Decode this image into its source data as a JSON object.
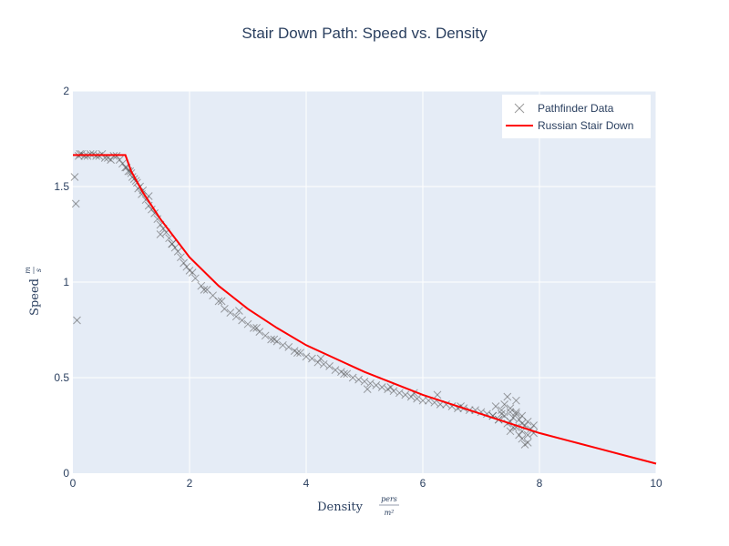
{
  "chart_data": {
    "type": "scatter",
    "title": "Stair Down Path: Speed vs. Density",
    "xlabel": "Density",
    "xlabel_unit_num": "pers",
    "xlabel_unit_den": "m²",
    "ylabel": "Speed",
    "ylabel_unit_num": "m",
    "ylabel_unit_den": "s",
    "xlim": [
      0,
      10
    ],
    "ylim": [
      0,
      2
    ],
    "x_ticks": [
      0,
      2,
      4,
      6,
      8,
      10
    ],
    "y_ticks": [
      0,
      0.5,
      1,
      1.5,
      2
    ],
    "x_tick_labels": [
      "0",
      "2",
      "4",
      "6",
      "8",
      "10"
    ],
    "y_tick_labels": [
      "0",
      "0.5",
      "1",
      "1.5",
      "2"
    ],
    "grid": true,
    "legend_position": "top-right",
    "series": [
      {
        "name": "Pathfinder Data",
        "mode": "markers",
        "marker": "x",
        "color": "#555555",
        "x": [
          0.05,
          0.07,
          0.03,
          0.1,
          0.15,
          0.2,
          0.3,
          0.4,
          0.5,
          0.6,
          0.7,
          0.8,
          0.12,
          0.25,
          0.35,
          0.45,
          0.55,
          0.65,
          0.75,
          0.85,
          0.9,
          0.95,
          1.0,
          1.05,
          1.1,
          1.15,
          1.2,
          0.92,
          0.98,
          1.02,
          1.08,
          1.12,
          1.18,
          1.25,
          1.3,
          1.35,
          1.4,
          1.45,
          1.5,
          1.55,
          1.6,
          1.65,
          1.7,
          1.75,
          1.8,
          1.85,
          1.9,
          1.95,
          2.0,
          2.1,
          2.2,
          2.3,
          2.4,
          2.5,
          2.6,
          2.7,
          2.8,
          2.9,
          3.0,
          3.1,
          3.2,
          3.3,
          3.4,
          3.5,
          3.6,
          3.7,
          3.8,
          3.9,
          4.0,
          4.1,
          4.2,
          4.3,
          4.4,
          4.5,
          4.6,
          4.7,
          4.8,
          4.9,
          5.0,
          5.1,
          5.2,
          5.3,
          5.4,
          5.5,
          5.6,
          5.7,
          5.8,
          5.9,
          6.0,
          6.1,
          6.2,
          6.3,
          6.4,
          6.5,
          6.6,
          6.7,
          6.8,
          6.9,
          7.0,
          7.1,
          7.2,
          7.25,
          7.3,
          7.35,
          7.4,
          7.45,
          7.5,
          7.5,
          7.55,
          7.6,
          7.6,
          7.65,
          7.7,
          7.7,
          7.75,
          7.8,
          7.8,
          7.85,
          7.9,
          7.5,
          7.6,
          7.7,
          7.4,
          7.55,
          7.65,
          7.75,
          7.45,
          7.35,
          7.8,
          7.9,
          7.6,
          7.7,
          7.5,
          7.3,
          7.2,
          1.3,
          1.5,
          1.7,
          2.05,
          2.25,
          2.55,
          2.85,
          3.15,
          3.45,
          3.85,
          4.25,
          4.65,
          5.05,
          5.45,
          5.85,
          6.25,
          6.65
        ],
        "y": [
          1.41,
          0.8,
          1.55,
          1.66,
          1.67,
          1.66,
          1.67,
          1.66,
          1.67,
          1.65,
          1.66,
          1.64,
          1.67,
          1.66,
          1.67,
          1.66,
          1.65,
          1.64,
          1.66,
          1.62,
          1.6,
          1.58,
          1.57,
          1.54,
          1.52,
          1.5,
          1.48,
          1.6,
          1.58,
          1.55,
          1.53,
          1.49,
          1.46,
          1.43,
          1.4,
          1.38,
          1.36,
          1.33,
          1.3,
          1.28,
          1.26,
          1.23,
          1.2,
          1.18,
          1.16,
          1.13,
          1.1,
          1.08,
          1.06,
          1.02,
          0.98,
          0.96,
          0.93,
          0.9,
          0.86,
          0.84,
          0.82,
          0.8,
          0.78,
          0.76,
          0.74,
          0.72,
          0.7,
          0.69,
          0.67,
          0.66,
          0.64,
          0.63,
          0.61,
          0.6,
          0.58,
          0.57,
          0.56,
          0.54,
          0.53,
          0.52,
          0.5,
          0.49,
          0.48,
          0.47,
          0.46,
          0.45,
          0.44,
          0.43,
          0.42,
          0.41,
          0.4,
          0.39,
          0.38,
          0.38,
          0.37,
          0.36,
          0.36,
          0.35,
          0.34,
          0.34,
          0.33,
          0.33,
          0.32,
          0.31,
          0.3,
          0.35,
          0.28,
          0.33,
          0.3,
          0.26,
          0.32,
          0.27,
          0.29,
          0.31,
          0.24,
          0.28,
          0.22,
          0.3,
          0.25,
          0.2,
          0.27,
          0.23,
          0.25,
          0.34,
          0.38,
          0.18,
          0.36,
          0.24,
          0.2,
          0.15,
          0.4,
          0.31,
          0.16,
          0.21,
          0.32,
          0.26,
          0.22,
          0.28,
          0.3,
          1.45,
          1.25,
          1.2,
          1.05,
          0.96,
          0.9,
          0.85,
          0.76,
          0.7,
          0.63,
          0.6,
          0.52,
          0.44,
          0.45,
          0.42,
          0.41,
          0.35
        ]
      },
      {
        "name": "Russian Stair Down",
        "mode": "lines",
        "color": "#ff0000",
        "x": [
          0,
          0.9,
          1.0,
          1.2,
          1.5,
          2.0,
          2.5,
          3.0,
          3.5,
          4.0,
          4.5,
          5.0,
          5.5,
          6.0,
          6.5,
          7.0,
          7.5,
          8.0,
          8.5,
          9.0,
          9.5,
          10.0
        ],
        "y": [
          1.665,
          1.665,
          1.58,
          1.47,
          1.33,
          1.13,
          0.98,
          0.86,
          0.76,
          0.67,
          0.6,
          0.53,
          0.47,
          0.41,
          0.36,
          0.31,
          0.26,
          0.21,
          0.17,
          0.13,
          0.09,
          0.05
        ]
      }
    ]
  }
}
